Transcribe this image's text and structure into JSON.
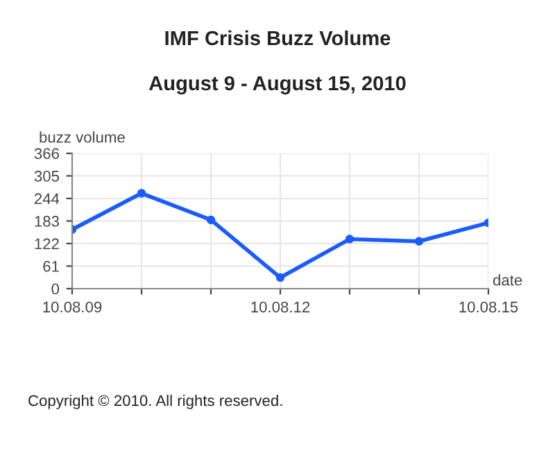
{
  "chart_data": {
    "type": "line",
    "title": "IMF Crisis Buzz Volume",
    "subtitle": "August 9 - August 15, 2010",
    "xlabel": "date",
    "ylabel": "buzz volume",
    "categories": [
      "10.08.09",
      null,
      null,
      "10.08.12",
      null,
      null,
      "10.08.15"
    ],
    "series": [
      {
        "color": "#1a5cff",
        "values": [
          160,
          258,
          186,
          30,
          134,
          128,
          178
        ]
      }
    ],
    "ylim": [
      0,
      366
    ],
    "yticks": [
      0,
      61,
      122,
      183,
      244,
      305,
      366
    ],
    "grid": true,
    "marker": "circle",
    "line_style": "solid",
    "legend": false,
    "annotations": [
      "Copyright © 2010. All rights reserved."
    ]
  }
}
